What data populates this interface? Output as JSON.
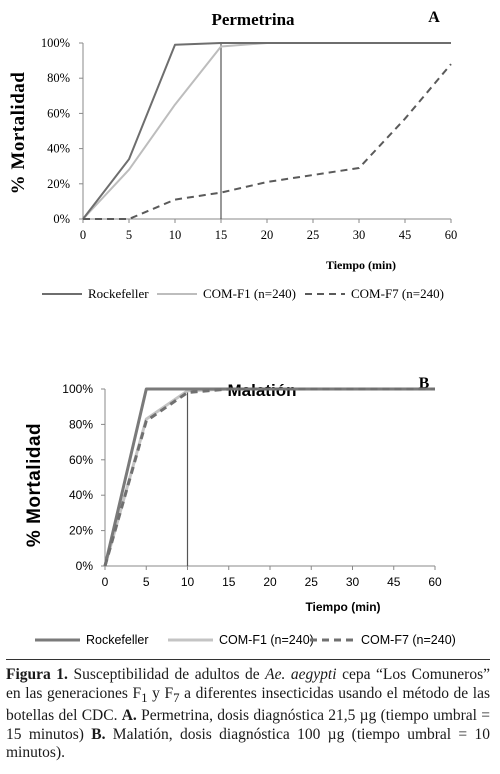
{
  "chart_data": [
    {
      "type": "line",
      "title": "Permetrina",
      "panel_label": "A",
      "xlabel": "Tiempo (min)",
      "ylabel": "% Mortalidad",
      "categories": [
        "0",
        "5",
        "10",
        "15",
        "20",
        "25",
        "30",
        "45",
        "60"
      ],
      "ylim": [
        0,
        100
      ],
      "yticks": [
        "0%",
        "20%",
        "40%",
        "60%",
        "80%",
        "100%"
      ],
      "threshold_category": 3,
      "series": [
        {
          "name": "Rockefeller",
          "values": [
            0,
            34,
            99,
            100,
            100,
            100,
            100,
            100,
            100
          ],
          "color": "#6e6e6e",
          "dash": "solid"
        },
        {
          "name": "COM-F1 (n=240)",
          "values": [
            0,
            28,
            65,
            98,
            100,
            100,
            100,
            100,
            100
          ],
          "color": "#bdbdbd",
          "dash": "solid"
        },
        {
          "name": "COM-F7 (n=240)",
          "values": [
            0,
            0,
            11,
            15,
            21,
            25,
            29,
            57,
            88
          ],
          "color": "#5a5a5a",
          "dash": "dashed"
        }
      ]
    },
    {
      "type": "line",
      "title": "Malatión",
      "panel_label": "B",
      "xlabel": "Tiempo (min)",
      "ylabel": "% Mortalidad",
      "categories": [
        "0",
        "5",
        "10",
        "15",
        "20",
        "25",
        "30",
        "45",
        "60"
      ],
      "ylim": [
        0,
        100
      ],
      "yticks": [
        "0%",
        "20%",
        "40%",
        "60%",
        "80%",
        "100%"
      ],
      "threshold_category": 2,
      "series": [
        {
          "name": "Rockefeller",
          "values": [
            0,
            100,
            100,
            100,
            100,
            100,
            100,
            100,
            100
          ],
          "color": "#7a7a7a",
          "dash": "solid"
        },
        {
          "name": "COM-F1 (n=240)",
          "values": [
            0,
            83,
            99,
            100,
            100,
            100,
            100,
            100,
            100
          ],
          "color": "#c4c4c4",
          "dash": "solid"
        },
        {
          "name": "COM-F7 (n=240)",
          "values": [
            0,
            82,
            98,
            100,
            100,
            100,
            100,
            100,
            100
          ],
          "color": "#707070",
          "dash": "dashed"
        }
      ]
    }
  ],
  "caption": {
    "fig_label": "Figura 1.",
    "text1": " Susceptibilidad de adultos de ",
    "species": "Ae. aegypti",
    "text2": " cepa “Los Comuneros” en las generaciones F",
    "sub1": "1",
    "text3": " y F",
    "sub2": "7",
    "text4": " a diferentes insecticidas usando el método de las botellas del CDC. ",
    "a_label": "A.",
    "text5": " Permetrina, dosis diagnóstica 21,5 µg (tiempo umbral = 15 minutos) ",
    "b_label": "B.",
    "text6": " Malatión, dosis diagnóstica 100 µg (tiempo umbral = 10 minutos)."
  }
}
